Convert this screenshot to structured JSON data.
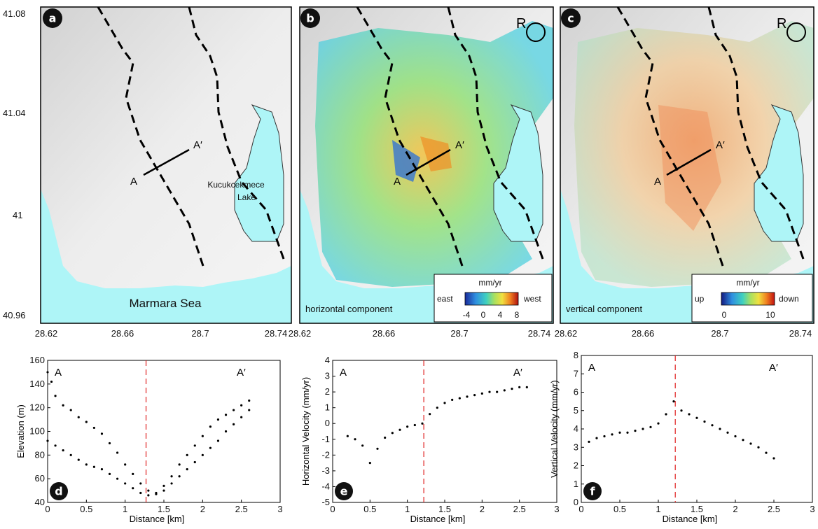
{
  "maps": {
    "lat_ticks": [
      "41.08",
      "41.04",
      "41",
      "40.96"
    ],
    "lon_ticks": [
      "28.62",
      "28.66",
      "28.7",
      "28.74"
    ],
    "panel_a": {
      "badge": "a",
      "sea_label": "Marmara Sea",
      "lake_label_line1": "Kucukcekmece",
      "lake_label_line2": "Lake",
      "profile_start": "A",
      "profile_end": "A′"
    },
    "panel_b": {
      "badge": "b",
      "ref_label": "R",
      "profile_start": "A",
      "profile_end": "A′",
      "component_label": "horizontal component",
      "colorbar_unit": "mm/yr",
      "colorbar_left": "east",
      "colorbar_right": "west",
      "colorbar_ticks": [
        "-4",
        "0",
        "4",
        "8"
      ]
    },
    "panel_c": {
      "badge": "c",
      "ref_label": "R",
      "profile_start": "A",
      "profile_end": "A′",
      "component_label": "vertical component",
      "colorbar_unit": "mm/yr",
      "colorbar_left": "up",
      "colorbar_right": "down",
      "colorbar_ticks": [
        "0",
        "10"
      ]
    },
    "colors": {
      "sea": "#aef5f7",
      "land": "#e6e6e6",
      "fault": "#000000"
    }
  },
  "chart_data": [
    {
      "type": "scatter",
      "badge": "d",
      "xlabel": "Distance [km]",
      "ylabel": "Elevation (m)",
      "xlim": [
        0,
        3
      ],
      "ylim": [
        40,
        160
      ],
      "xticks": [
        "0",
        "0.5",
        "1",
        "1.5",
        "2",
        "2.5",
        "3"
      ],
      "yticks": [
        "40",
        "60",
        "80",
        "100",
        "120",
        "140",
        "160"
      ],
      "start_label": "A",
      "end_label": "A′",
      "divider_x": 1.27,
      "series": [
        {
          "points": [
            [
              0.0,
              150
            ],
            [
              0.05,
              142
            ],
            [
              0.1,
              130
            ],
            [
              0.2,
              122
            ],
            [
              0.3,
              118
            ],
            [
              0.4,
              112
            ],
            [
              0.5,
              108
            ],
            [
              0.6,
              103
            ],
            [
              0.7,
              98
            ],
            [
              0.8,
              90
            ],
            [
              0.9,
              82
            ],
            [
              1.0,
              72
            ],
            [
              1.1,
              64
            ],
            [
              1.2,
              56
            ],
            [
              1.3,
              50
            ],
            [
              1.4,
              48
            ],
            [
              1.5,
              54
            ],
            [
              1.6,
              62
            ],
            [
              1.7,
              72
            ],
            [
              1.8,
              80
            ],
            [
              1.9,
              88
            ],
            [
              2.0,
              96
            ],
            [
              2.1,
              104
            ],
            [
              2.2,
              110
            ],
            [
              2.3,
              114
            ],
            [
              2.4,
              118
            ],
            [
              2.5,
              122
            ],
            [
              2.6,
              126
            ],
            [
              0.0,
              92
            ],
            [
              0.1,
              88
            ],
            [
              0.2,
              84
            ],
            [
              0.3,
              80
            ],
            [
              0.4,
              76
            ],
            [
              0.5,
              72
            ],
            [
              0.6,
              70
            ],
            [
              0.7,
              68
            ],
            [
              0.8,
              64
            ],
            [
              0.9,
              60
            ],
            [
              1.0,
              56
            ],
            [
              1.1,
              52
            ],
            [
              1.2,
              48
            ],
            [
              1.3,
              46
            ],
            [
              1.4,
              47
            ],
            [
              1.5,
              50
            ],
            [
              1.6,
              56
            ],
            [
              1.7,
              62
            ],
            [
              1.8,
              68
            ],
            [
              1.9,
              74
            ],
            [
              2.0,
              80
            ],
            [
              2.1,
              86
            ],
            [
              2.2,
              92
            ],
            [
              2.3,
              100
            ],
            [
              2.4,
              106
            ],
            [
              2.5,
              112
            ],
            [
              2.6,
              118
            ]
          ]
        }
      ]
    },
    {
      "type": "scatter",
      "badge": "e",
      "xlabel": "Distance [km]",
      "ylabel": "Horizontal Velocity (mm/yr)",
      "xlim": [
        0,
        3
      ],
      "ylim": [
        -5,
        4
      ],
      "xticks": [
        "0",
        "0.5",
        "1",
        "1.5",
        "2",
        "2.5",
        "3"
      ],
      "yticks": [
        "-5",
        "-4",
        "-3",
        "-2",
        "-1",
        "0",
        "1",
        "2",
        "3",
        "4"
      ],
      "start_label": "A",
      "end_label": "A′",
      "divider_x": 1.22,
      "series": [
        {
          "points": [
            [
              0.2,
              -0.8
            ],
            [
              0.3,
              -1.0
            ],
            [
              0.4,
              -1.4
            ],
            [
              0.5,
              -2.5
            ],
            [
              0.6,
              -1.6
            ],
            [
              0.7,
              -0.9
            ],
            [
              0.8,
              -0.6
            ],
            [
              0.9,
              -0.4
            ],
            [
              1.0,
              -0.2
            ],
            [
              1.1,
              -0.1
            ],
            [
              1.2,
              0.0
            ],
            [
              1.3,
              0.6
            ],
            [
              1.4,
              1.0
            ],
            [
              1.5,
              1.3
            ],
            [
              1.6,
              1.5
            ],
            [
              1.7,
              1.6
            ],
            [
              1.8,
              1.7
            ],
            [
              1.9,
              1.8
            ],
            [
              2.0,
              1.9
            ],
            [
              2.1,
              2.0
            ],
            [
              2.2,
              2.0
            ],
            [
              2.3,
              2.1
            ],
            [
              2.4,
              2.2
            ],
            [
              2.5,
              2.3
            ],
            [
              2.6,
              2.3
            ]
          ]
        }
      ]
    },
    {
      "type": "scatter",
      "badge": "f",
      "xlabel": "Distance [km]",
      "ylabel": "Vertical Velocity (mm/yr)",
      "xlim": [
        0,
        3
      ],
      "ylim": [
        0,
        8
      ],
      "xticks": [
        "0",
        "0.5",
        "1",
        "1.5",
        "2",
        "2.5",
        "3"
      ],
      "yticks": [
        "0",
        "1",
        "2",
        "3",
        "4",
        "5",
        "6",
        "7",
        "8"
      ],
      "start_label": "A",
      "end_label": "A′",
      "divider_x": 1.22,
      "series": [
        {
          "points": [
            [
              0.1,
              3.3
            ],
            [
              0.2,
              3.5
            ],
            [
              0.3,
              3.6
            ],
            [
              0.4,
              3.7
            ],
            [
              0.5,
              3.8
            ],
            [
              0.6,
              3.8
            ],
            [
              0.7,
              3.9
            ],
            [
              0.8,
              4.0
            ],
            [
              0.9,
              4.1
            ],
            [
              1.0,
              4.3
            ],
            [
              1.1,
              4.8
            ],
            [
              1.2,
              5.5
            ],
            [
              1.3,
              5.0
            ],
            [
              1.4,
              4.8
            ],
            [
              1.5,
              4.6
            ],
            [
              1.6,
              4.4
            ],
            [
              1.7,
              4.2
            ],
            [
              1.8,
              4.0
            ],
            [
              1.9,
              3.8
            ],
            [
              2.0,
              3.6
            ],
            [
              2.1,
              3.4
            ],
            [
              2.2,
              3.2
            ],
            [
              2.3,
              3.0
            ],
            [
              2.4,
              2.7
            ],
            [
              2.5,
              2.4
            ]
          ]
        }
      ]
    }
  ]
}
